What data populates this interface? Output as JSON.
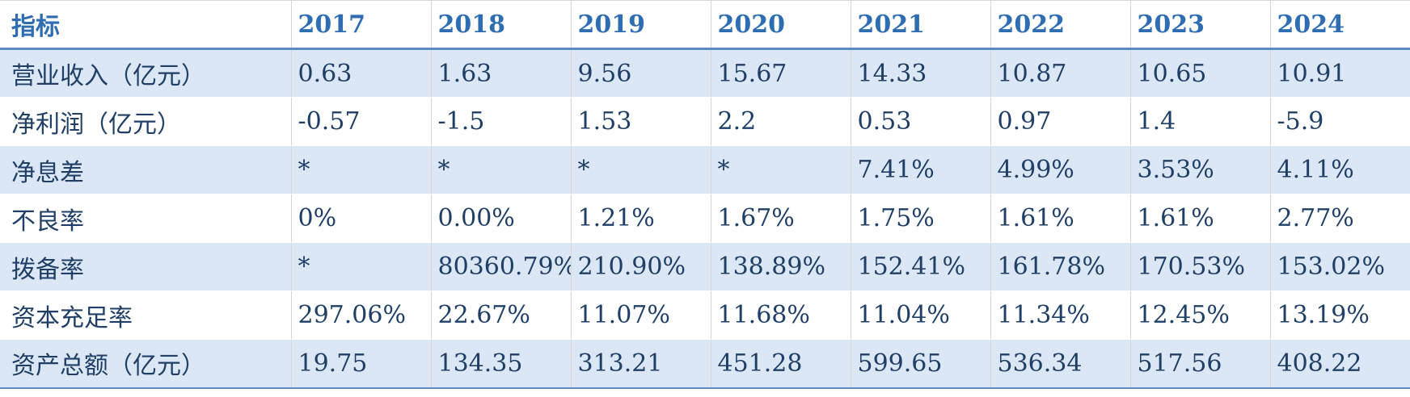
{
  "table": {
    "header": {
      "label": "指标",
      "years": [
        "2017",
        "2018",
        "2019",
        "2020",
        "2021",
        "2022",
        "2023",
        "2024"
      ]
    },
    "rows": [
      {
        "label": "营业收入（亿元）",
        "cells": [
          "0.63",
          "1.63",
          "9.56",
          "15.67",
          "14.33",
          "10.87",
          "10.65",
          "10.91"
        ]
      },
      {
        "label": "净利润（亿元）",
        "cells": [
          "-0.57",
          "-1.5",
          "1.53",
          "2.2",
          "0.53",
          "0.97",
          "1.4",
          "-5.9"
        ]
      },
      {
        "label": "净息差",
        "cells": [
          "*",
          "*",
          "*",
          "*",
          "7.41%",
          "4.99%",
          "3.53%",
          "4.11%"
        ]
      },
      {
        "label": "不良率",
        "cells": [
          "0%",
          "0.00%",
          "1.21%",
          "1.67%",
          "1.75%",
          "1.61%",
          "1.61%",
          "2.77%"
        ]
      },
      {
        "label": "拨备率",
        "cells": [
          "*",
          "80360.79%",
          "210.90%",
          "138.89%",
          "152.41%",
          "161.78%",
          "170.53%",
          "153.02%"
        ]
      },
      {
        "label": "资本充足率",
        "cells": [
          "297.06%",
          "22.67%",
          "11.07%",
          "11.68%",
          "11.04%",
          "11.34%",
          "12.45%",
          "13.19%"
        ]
      },
      {
        "label": "资产总额（亿元）",
        "cells": [
          "19.75",
          "134.35",
          "313.21",
          "451.28",
          "599.65",
          "536.34",
          "517.56",
          "408.22"
        ]
      }
    ]
  },
  "colors": {
    "header_text": "#2f6db3",
    "body_text": "#1f3f66",
    "band_fill": "#dbe7f4",
    "rule": "#5b8cc4"
  }
}
